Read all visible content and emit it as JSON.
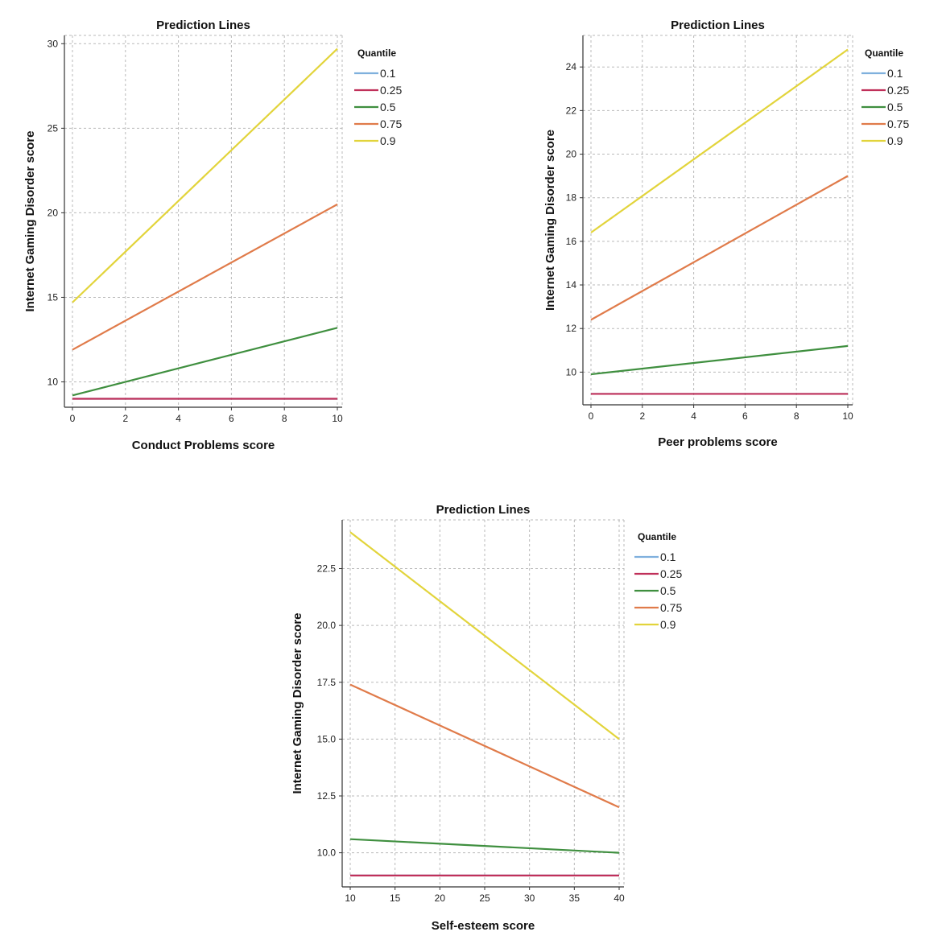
{
  "chart_data": [
    {
      "type": "line",
      "title": "Prediction Lines",
      "xlabel": "Conduct Problems score",
      "ylabel": "Internet Gaming Disorder score",
      "xlim": [
        0,
        10
      ],
      "ylim": [
        8.5,
        30.3
      ],
      "xticks": [
        0,
        2,
        4,
        6,
        8,
        10
      ],
      "xtick_labels": [
        "0",
        "2",
        "4",
        "6",
        "8",
        "10"
      ],
      "yticks": [
        10,
        15,
        20,
        25,
        30
      ],
      "ytick_labels": [
        "10",
        "15",
        "20",
        "25",
        "30"
      ],
      "grid": true,
      "legend_title": "Quantile",
      "legend_position": "right",
      "series": [
        {
          "name": "0.1",
          "color": "#7fb0dd",
          "x": [
            0,
            10
          ],
          "y": [
            9.0,
            9.0
          ]
        },
        {
          "name": "0.25",
          "color": "#c0305a",
          "x": [
            0,
            10
          ],
          "y": [
            9.0,
            9.0
          ]
        },
        {
          "name": "0.5",
          "color": "#3f8f3f",
          "x": [
            0,
            10
          ],
          "y": [
            9.2,
            13.2
          ]
        },
        {
          "name": "0.75",
          "color": "#e07b4a",
          "x": [
            0,
            10
          ],
          "y": [
            11.9,
            20.5
          ]
        },
        {
          "name": "0.9",
          "color": "#e2d43b",
          "x": [
            0,
            10
          ],
          "y": [
            14.7,
            29.7
          ]
        }
      ]
    },
    {
      "type": "line",
      "title": "Prediction Lines",
      "xlabel": "Peer problems score",
      "ylabel": "Internet Gaming Disorder score",
      "xlim": [
        0,
        10
      ],
      "ylim": [
        8.5,
        25.3
      ],
      "xticks": [
        0,
        2,
        4,
        6,
        8,
        10
      ],
      "xtick_labels": [
        "0",
        "2",
        "4",
        "6",
        "8",
        "10"
      ],
      "yticks": [
        10,
        12,
        14,
        16,
        18,
        20,
        22,
        24
      ],
      "ytick_labels": [
        "10",
        "12",
        "14",
        "16",
        "18",
        "20",
        "22",
        "24"
      ],
      "grid": true,
      "legend_title": "Quantile",
      "legend_position": "right",
      "series": [
        {
          "name": "0.1",
          "color": "#7fb0dd",
          "x": [
            0,
            10
          ],
          "y": [
            9.0,
            9.0
          ]
        },
        {
          "name": "0.25",
          "color": "#c0305a",
          "x": [
            0,
            10
          ],
          "y": [
            9.0,
            9.0
          ]
        },
        {
          "name": "0.5",
          "color": "#3f8f3f",
          "x": [
            0,
            10
          ],
          "y": [
            9.9,
            11.2
          ]
        },
        {
          "name": "0.75",
          "color": "#e07b4a",
          "x": [
            0,
            10
          ],
          "y": [
            12.4,
            19.0
          ]
        },
        {
          "name": "0.9",
          "color": "#e2d43b",
          "x": [
            0,
            10
          ],
          "y": [
            16.4,
            24.8
          ]
        }
      ]
    },
    {
      "type": "line",
      "title": "Prediction Lines",
      "xlabel": "Self-esteem score",
      "ylabel": "Internet Gaming Disorder score",
      "xlim": [
        10,
        40
      ],
      "ylim": [
        8.5,
        24.5
      ],
      "xticks": [
        10,
        15,
        20,
        25,
        30,
        35,
        40
      ],
      "xtick_labels": [
        "10",
        "15",
        "20",
        "25",
        "30",
        "35",
        "40"
      ],
      "yticks": [
        10,
        12.5,
        15,
        17.5,
        20,
        22.5
      ],
      "ytick_labels": [
        "10.0",
        "12.5",
        "15.0",
        "17.5",
        "20.0",
        "22.5"
      ],
      "grid": true,
      "legend_title": "Quantile",
      "legend_position": "right",
      "series": [
        {
          "name": "0.1",
          "color": "#7fb0dd",
          "x": [
            10,
            40
          ],
          "y": [
            9.0,
            9.0
          ]
        },
        {
          "name": "0.25",
          "color": "#c0305a",
          "x": [
            10,
            40
          ],
          "y": [
            9.0,
            9.0
          ]
        },
        {
          "name": "0.5",
          "color": "#3f8f3f",
          "x": [
            10,
            40
          ],
          "y": [
            10.6,
            10.0
          ]
        },
        {
          "name": "0.75",
          "color": "#e07b4a",
          "x": [
            10,
            40
          ],
          "y": [
            17.4,
            12.0
          ]
        },
        {
          "name": "0.9",
          "color": "#e2d43b",
          "x": [
            10,
            40
          ],
          "y": [
            24.1,
            15.0
          ]
        }
      ]
    }
  ]
}
